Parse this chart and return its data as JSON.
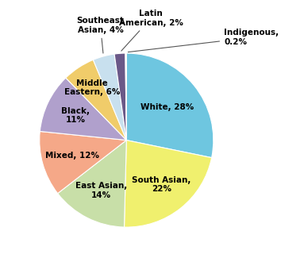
{
  "labels": [
    "White",
    "South Asian",
    "East Asian",
    "Mixed",
    "Black",
    "Middle Eastern",
    "Southeast Asian",
    "Latin American",
    "Indigenous"
  ],
  "values": [
    28,
    22,
    14,
    12,
    11,
    6,
    4,
    2,
    0.2
  ],
  "colors": [
    "#6ec6e0",
    "#f0f06e",
    "#c8dfa8",
    "#f5a888",
    "#b0a0cc",
    "#f0cc6a",
    "#c8e0ee",
    "#6a5888",
    "#e8e8e8"
  ],
  "inside_labels": [
    {
      "idx": 0,
      "text": "White, 28%",
      "r": 0.6
    },
    {
      "idx": 1,
      "text": "South Asian,\n22%",
      "r": 0.65
    },
    {
      "idx": 2,
      "text": "East Asian,\n14%",
      "r": 0.65
    },
    {
      "idx": 3,
      "text": "Mixed, 12%",
      "r": 0.65
    },
    {
      "idx": 4,
      "text": "Black,\n11%",
      "r": 0.65
    },
    {
      "idx": 5,
      "text": "Middle\nEastern, 6%",
      "r": 0.72
    }
  ],
  "outside_labels": [
    {
      "idx": 6,
      "text": "Southeast\nAsian, 4%",
      "xt": -0.3,
      "yt": 1.32,
      "ha": "center"
    },
    {
      "idx": 7,
      "text": "Latin\nAmerican, 2%",
      "xt": 0.28,
      "yt": 1.4,
      "ha": "center"
    },
    {
      "idx": 8,
      "text": "Indigenous,\n0.2%",
      "xt": 1.12,
      "yt": 1.18,
      "ha": "left"
    }
  ],
  "startangle": 90,
  "figsize": [
    3.54,
    3.3
  ],
  "dpi": 100,
  "fontsize": 7.5,
  "fontweight": "bold"
}
